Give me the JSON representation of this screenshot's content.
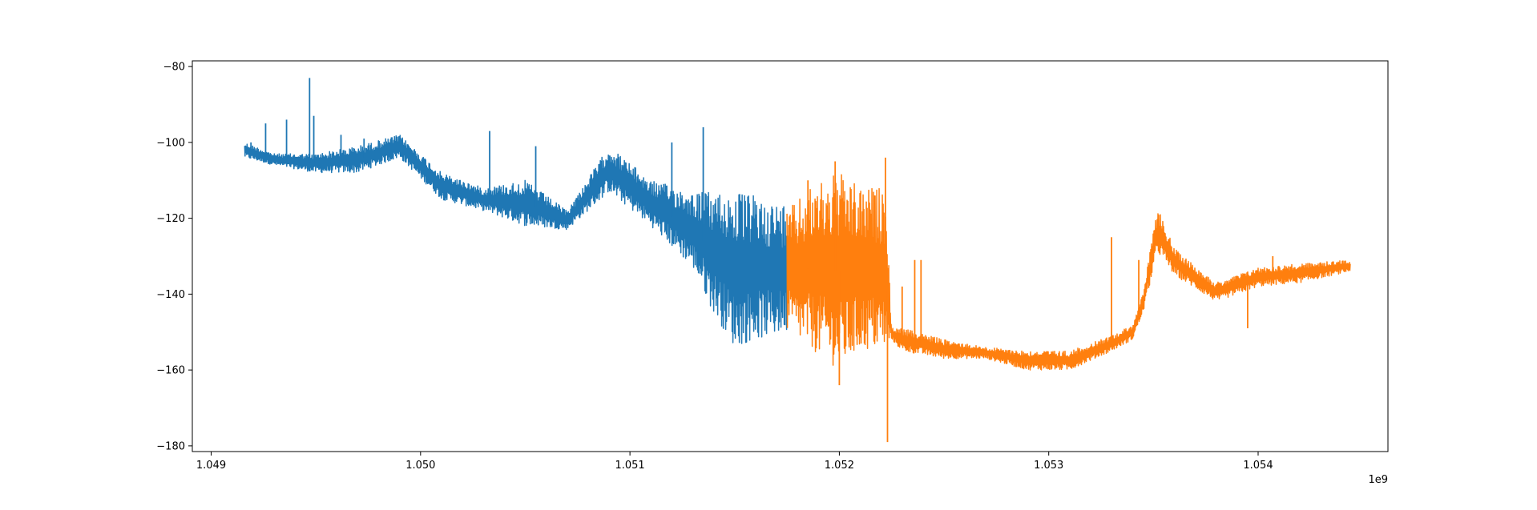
{
  "chart_data": {
    "type": "line",
    "title": "",
    "xlabel": "",
    "ylabel": "",
    "x_offset_label": "1e9",
    "xlim": [
      1.04891,
      1.05462
    ],
    "ylim": [
      -181.5,
      -78.5
    ],
    "x_ticks": [
      1.049,
      1.05,
      1.051,
      1.052,
      1.053,
      1.054
    ],
    "x_tick_labels": [
      "1.049",
      "1.050",
      "1.051",
      "1.052",
      "1.053",
      "1.054"
    ],
    "y_ticks": [
      -80,
      -100,
      -120,
      -140,
      -160,
      -180
    ],
    "y_tick_labels": [
      "−80",
      "−100",
      "−120",
      "−140",
      "−160",
      "−180"
    ],
    "grid": false,
    "legend": "none",
    "series": [
      {
        "color": "#1f77b4",
        "x_range": [
          1.04916,
          1.05175
        ],
        "envelope_x": [
          1.04916,
          1.0493,
          1.0495,
          1.0497,
          1.0499,
          1.0501,
          1.0503,
          1.0505,
          1.0507,
          1.0509,
          1.0511,
          1.0513,
          1.0514,
          1.0515,
          1.0516,
          1.0517,
          1.05175
        ],
        "envelope_upper": [
          -100,
          -103,
          -103,
          -101,
          -98,
          -108,
          -112,
          -110,
          -118,
          -101,
          -110,
          -113,
          -113,
          -113,
          -114,
          -116,
          -116
        ],
        "envelope_lower": [
          -104,
          -106,
          -108,
          -108,
          -104,
          -115,
          -118,
          -122,
          -123,
          -113,
          -122,
          -133,
          -145,
          -154,
          -152,
          -151,
          -150
        ],
        "spikes": [
          {
            "x": 1.04919,
            "y": -100
          },
          {
            "x": 1.04926,
            "y": -95
          },
          {
            "x": 1.04936,
            "y": -94
          },
          {
            "x": 1.04947,
            "y": -83
          },
          {
            "x": 1.04949,
            "y": -93
          },
          {
            "x": 1.04962,
            "y": -98
          },
          {
            "x": 1.04973,
            "y": -99
          },
          {
            "x": 1.05033,
            "y": -97
          },
          {
            "x": 1.05055,
            "y": -101
          },
          {
            "x": 1.0512,
            "y": -100
          },
          {
            "x": 1.05135,
            "y": -96
          }
        ]
      },
      {
        "color": "#ff7f0e",
        "x_range": [
          1.05175,
          1.05444
        ],
        "envelope_x": [
          1.05175,
          1.0519,
          1.052,
          1.0521,
          1.05222,
          1.05225,
          1.0523,
          1.0525,
          1.0527,
          1.0529,
          1.0531,
          1.0533,
          1.0534,
          1.05345,
          1.05352,
          1.0536,
          1.0538,
          1.054,
          1.0542,
          1.05444
        ],
        "envelope_upper": [
          -118,
          -110,
          -108,
          -112,
          -112,
          -149,
          -149,
          -152,
          -154,
          -155,
          -155,
          -151,
          -148,
          -140,
          -117,
          -128,
          -137,
          -133,
          -132,
          -131
        ],
        "envelope_lower": [
          -150,
          -156,
          -160,
          -155,
          -155,
          -152,
          -155,
          -157,
          -157,
          -160,
          -160,
          -155,
          -152,
          -145,
          -129,
          -135,
          -142,
          -138,
          -137,
          -134
        ],
        "spikes": [
          {
            "x": 1.05185,
            "y": -110
          },
          {
            "x": 1.05198,
            "y": -105
          },
          {
            "x": 1.052,
            "y": -164
          },
          {
            "x": 1.05222,
            "y": -104
          },
          {
            "x": 1.05223,
            "y": -179
          },
          {
            "x": 1.0523,
            "y": -138
          },
          {
            "x": 1.05236,
            "y": -131
          },
          {
            "x": 1.05239,
            "y": -131
          },
          {
            "x": 1.0533,
            "y": -125
          },
          {
            "x": 1.05343,
            "y": -131
          },
          {
            "x": 1.05395,
            "y": -149
          },
          {
            "x": 1.05407,
            "y": -130
          }
        ]
      }
    ]
  }
}
